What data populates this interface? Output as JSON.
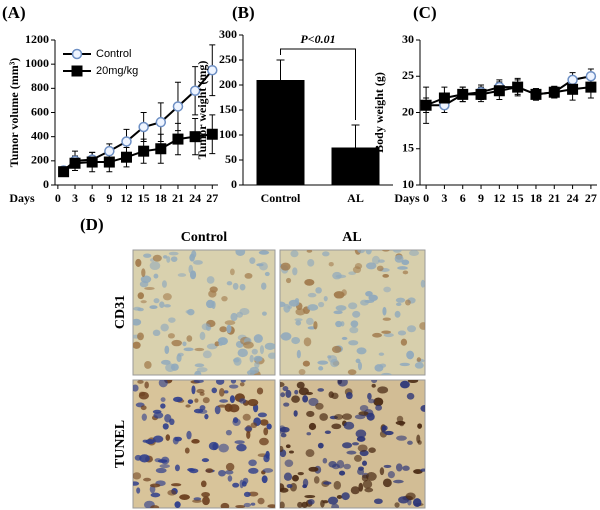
{
  "chart_data": [
    {
      "type": "line",
      "label": "(A)",
      "y_label": "Tumor volume (mm³)",
      "x_label": "Days",
      "x": [
        1,
        3,
        6,
        9,
        12,
        15,
        18,
        21,
        24,
        27
      ],
      "xlim": [
        -0.5,
        28
      ],
      "xticks": [
        0,
        3,
        6,
        9,
        12,
        15,
        18,
        21,
        24,
        27
      ],
      "ylim": [
        0,
        1200
      ],
      "yticks": [
        0,
        200,
        400,
        600,
        800,
        1000,
        1200
      ],
      "legend": "top-left",
      "series": [
        {
          "name": "Control",
          "color": "#000000",
          "marker": "circle",
          "marker_fill": "#eef4ff",
          "values": [
            120,
            200,
            210,
            280,
            360,
            480,
            520,
            650,
            780,
            950
          ],
          "errors": [
            30,
            80,
            60,
            60,
            100,
            120,
            160,
            200,
            200,
            210
          ]
        },
        {
          "name": "20mg/kg",
          "color": "#000000",
          "marker": "square",
          "marker_fill": "#000000",
          "values": [
            110,
            180,
            190,
            190,
            230,
            280,
            300,
            380,
            400,
            420
          ],
          "errors": [
            30,
            60,
            80,
            80,
            80,
            100,
            120,
            130,
            150,
            160
          ]
        }
      ]
    },
    {
      "type": "bar",
      "label": "(B)",
      "y_label": "Tumor weight (mg)",
      "categories": [
        "Control",
        "AL"
      ],
      "values": [
        210,
        75
      ],
      "errors": [
        40,
        45
      ],
      "color": "#000000",
      "ylim": [
        0,
        300
      ],
      "yticks": [
        0,
        50,
        100,
        150,
        200,
        250,
        300
      ],
      "annotation": "P<0.01"
    },
    {
      "type": "line",
      "label": "(C)",
      "y_label": "Body weight (g)",
      "x_label": "Days",
      "x": [
        0,
        3,
        6,
        9,
        12,
        15,
        18,
        21,
        24,
        27
      ],
      "xlim": [
        -1,
        28
      ],
      "xticks": [
        0,
        3,
        6,
        9,
        12,
        15,
        18,
        21,
        24,
        27
      ],
      "ylim": [
        10,
        30
      ],
      "yticks": [
        10,
        15,
        20,
        25,
        30
      ],
      "series": [
        {
          "name": "Control",
          "color": "#000000",
          "marker": "circle",
          "marker_fill": "#eef4ff",
          "values": [
            21,
            21,
            22.5,
            22.8,
            23.5,
            23.5,
            22.5,
            22.8,
            24.5,
            25
          ],
          "errors": [
            1,
            1,
            1,
            1,
            1,
            1,
            0.8,
            0.8,
            1,
            1
          ]
        },
        {
          "name": "20mg/kg",
          "color": "#000000",
          "marker": "square",
          "marker_fill": "#000000",
          "values": [
            21,
            22,
            22.5,
            22.5,
            23,
            23.5,
            22.5,
            22.8,
            23.2,
            23.5
          ],
          "errors": [
            2.5,
            1.5,
            1,
            1,
            1.2,
            1.2,
            0.8,
            0.8,
            1.5,
            1.5
          ]
        }
      ]
    }
  ],
  "panel_d": {
    "label": "(D)",
    "columns": [
      "Control",
      "AL"
    ],
    "rows": [
      "CD31",
      "TUNEL"
    ]
  }
}
